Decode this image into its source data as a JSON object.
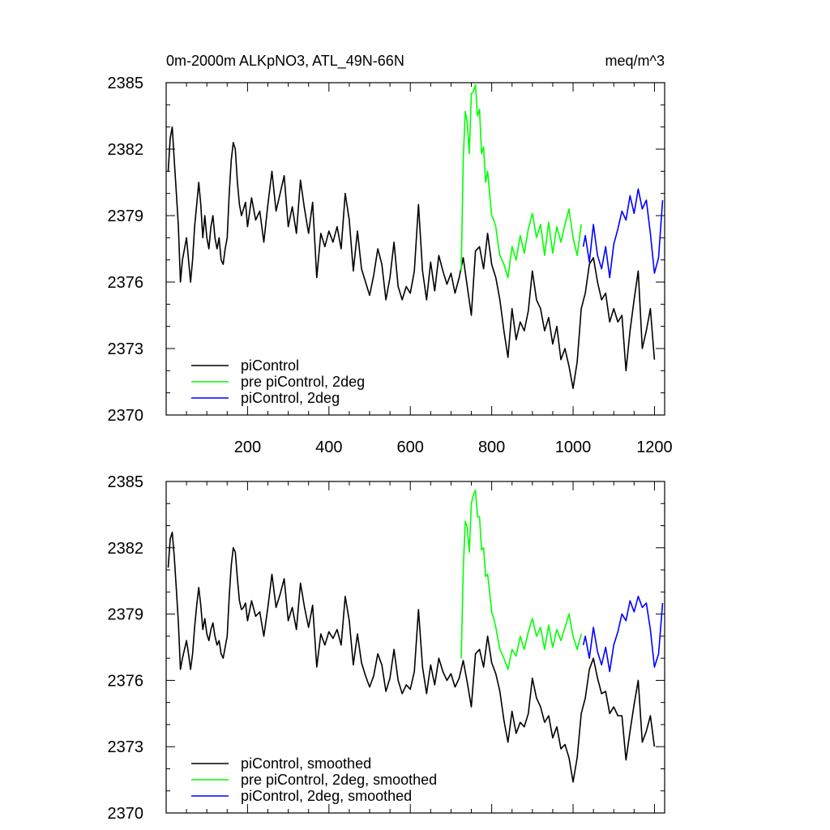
{
  "chart_data": [
    {
      "type": "line",
      "title_left": "0m-2000m ALKpNO3, ATL_49N-66N",
      "title_right": "meq/m^3",
      "xlim": [
        0,
        1225
      ],
      "ylim": [
        2370,
        2385
      ],
      "xticks": [
        200,
        400,
        600,
        800,
        1000,
        1200
      ],
      "xtick_labels": [
        "200",
        "400",
        "600",
        "800",
        "1000",
        "1200"
      ],
      "yticks": [
        2370,
        2373,
        2376,
        2379,
        2382,
        2385
      ],
      "ytick_labels": [
        "2370",
        "2373",
        "2376",
        "2379",
        "2382",
        "2385"
      ],
      "legend_position": "bottom-left",
      "series": [
        {
          "name": "piControl",
          "color": "#000000",
          "x": [
            5,
            10,
            15,
            20,
            25,
            30,
            35,
            40,
            45,
            50,
            55,
            60,
            65,
            70,
            75,
            80,
            85,
            90,
            95,
            100,
            105,
            110,
            115,
            120,
            125,
            130,
            135,
            140,
            145,
            150,
            155,
            160,
            165,
            170,
            175,
            180,
            185,
            190,
            195,
            200,
            210,
            220,
            230,
            240,
            250,
            260,
            270,
            280,
            290,
            300,
            310,
            320,
            330,
            340,
            350,
            360,
            370,
            380,
            390,
            400,
            410,
            420,
            430,
            440,
            450,
            460,
            470,
            480,
            490,
            500,
            510,
            520,
            530,
            540,
            550,
            560,
            570,
            580,
            590,
            600,
            610,
            620,
            630,
            640,
            650,
            660,
            670,
            680,
            690,
            700,
            710,
            720,
            730,
            740,
            750,
            760,
            770,
            780,
            790,
            800,
            810,
            820,
            830,
            840,
            850,
            860,
            870,
            880,
            890,
            900,
            910,
            920,
            930,
            940,
            950,
            960,
            970,
            980,
            990,
            1000,
            1010,
            1020,
            1030,
            1040,
            1050,
            1060,
            1070,
            1080,
            1090,
            1100,
            1110,
            1120,
            1130,
            1140,
            1150,
            1160,
            1170,
            1180,
            1190,
            1200
          ],
          "values": [
            2381.0,
            2382.5,
            2383.0,
            2381.5,
            2380.0,
            2378.5,
            2376.0,
            2377.0,
            2377.5,
            2378.0,
            2377.0,
            2376.0,
            2377.0,
            2378.5,
            2379.5,
            2380.5,
            2379.5,
            2378.0,
            2379.0,
            2378.0,
            2377.5,
            2378.5,
            2379.0,
            2378.0,
            2377.5,
            2378.0,
            2377.0,
            2376.8,
            2377.5,
            2378.0,
            2380.0,
            2381.5,
            2382.3,
            2382.0,
            2380.5,
            2379.5,
            2379.0,
            2379.3,
            2379.6,
            2378.5,
            2379.8,
            2378.8,
            2379.2,
            2377.8,
            2379.5,
            2381.0,
            2379.2,
            2380.0,
            2380.8,
            2378.5,
            2379.4,
            2378.2,
            2380.6,
            2379.3,
            2378.2,
            2379.6,
            2376.2,
            2378.2,
            2377.6,
            2378.3,
            2377.8,
            2378.5,
            2377.5,
            2380.0,
            2378.8,
            2376.5,
            2378.3,
            2376.6,
            2376.0,
            2375.4,
            2376.3,
            2377.5,
            2376.8,
            2375.2,
            2376.2,
            2377.8,
            2375.8,
            2375.2,
            2375.8,
            2375.5,
            2376.5,
            2379.5,
            2376.5,
            2375.2,
            2376.9,
            2375.6,
            2377.2,
            2376.5,
            2375.9,
            2376.4,
            2375.5,
            2376.2,
            2377.1,
            2375.8,
            2374.5,
            2377.4,
            2377.6,
            2376.6,
            2378.2,
            2376.8,
            2376.2,
            2375.2,
            2373.8,
            2372.6,
            2374.8,
            2373.4,
            2374.2,
            2373.8,
            2374.7,
            2376.5,
            2375.2,
            2374.8,
            2373.8,
            2374.4,
            2373.2,
            2374.0,
            2372.5,
            2373.0,
            2372.2,
            2371.2,
            2372.4,
            2374.8,
            2375.5,
            2376.8,
            2377.1,
            2376.0,
            2375.2,
            2375.5,
            2374.2,
            2374.8,
            2374.2,
            2374.5,
            2372.0,
            2373.8,
            2375.2,
            2376.5,
            2373.0,
            2373.8,
            2374.8,
            2372.5
          ],
          "legend_label": "piControl"
        },
        {
          "name": "pre piControl, 2deg",
          "color": "#00ff00",
          "x": [
            725,
            730,
            735,
            740,
            745,
            750,
            755,
            760,
            765,
            770,
            775,
            780,
            785,
            790,
            795,
            800,
            805,
            810,
            815,
            820,
            830,
            840,
            850,
            860,
            870,
            880,
            890,
            900,
            910,
            920,
            930,
            940,
            950,
            960,
            970,
            980,
            990,
            1000,
            1010,
            1020
          ],
          "values": [
            2376.5,
            2381.5,
            2383.7,
            2383.2,
            2381.8,
            2384.5,
            2384.6,
            2384.9,
            2383.5,
            2383.8,
            2381.8,
            2382.1,
            2380.5,
            2381.0,
            2380.0,
            2379.0,
            2378.8,
            2378.5,
            2377.8,
            2377.2,
            2376.8,
            2376.2,
            2377.6,
            2377.0,
            2378.1,
            2377.3,
            2378.4,
            2379.1,
            2378.0,
            2378.6,
            2377.2,
            2378.7,
            2377.3,
            2378.5,
            2377.8,
            2378.6,
            2379.3,
            2378.0,
            2377.2,
            2378.6
          ],
          "legend_label": "pre piControl, 2deg"
        },
        {
          "name": "piControl, 2deg",
          "color": "#0000ff",
          "x": [
            1025,
            1030,
            1040,
            1050,
            1060,
            1070,
            1080,
            1090,
            1100,
            1110,
            1120,
            1130,
            1140,
            1150,
            1160,
            1170,
            1180,
            1190,
            1200,
            1210,
            1220
          ],
          "values": [
            2377.6,
            2378.1,
            2376.9,
            2378.6,
            2377.2,
            2376.6,
            2377.6,
            2376.2,
            2377.7,
            2378.4,
            2379.2,
            2378.8,
            2379.9,
            2379.1,
            2380.2,
            2379.3,
            2379.7,
            2378.2,
            2376.4,
            2377.1,
            2379.7
          ],
          "legend_label": "piControl, 2deg"
        }
      ]
    },
    {
      "type": "line",
      "title_left": "",
      "title_right": "",
      "xlim": [
        0,
        1225
      ],
      "ylim": [
        2370,
        2385
      ],
      "xticks": [
        200,
        400,
        600,
        800,
        1000,
        1200
      ],
      "xtick_labels": [],
      "yticks": [
        2370,
        2373,
        2376,
        2379,
        2382,
        2385
      ],
      "ytick_labels": [
        "2370",
        "2373",
        "2376",
        "2379",
        "2382",
        "2385"
      ],
      "legend_position": "bottom-left",
      "series": [
        {
          "name": "piControl, smoothed",
          "color": "#000000",
          "x": [
            5,
            10,
            15,
            20,
            25,
            30,
            35,
            40,
            45,
            50,
            55,
            60,
            65,
            70,
            75,
            80,
            85,
            90,
            95,
            100,
            105,
            110,
            115,
            120,
            125,
            130,
            135,
            140,
            145,
            150,
            155,
            160,
            165,
            170,
            175,
            180,
            185,
            190,
            195,
            200,
            210,
            220,
            230,
            240,
            250,
            260,
            270,
            280,
            290,
            300,
            310,
            320,
            330,
            340,
            350,
            360,
            370,
            380,
            390,
            400,
            410,
            420,
            430,
            440,
            450,
            460,
            470,
            480,
            490,
            500,
            510,
            520,
            530,
            540,
            550,
            560,
            570,
            580,
            590,
            600,
            610,
            620,
            630,
            640,
            650,
            660,
            670,
            680,
            690,
            700,
            710,
            720,
            730,
            740,
            750,
            760,
            770,
            780,
            790,
            800,
            810,
            820,
            830,
            840,
            850,
            860,
            870,
            880,
            890,
            900,
            910,
            920,
            930,
            940,
            950,
            960,
            970,
            980,
            990,
            1000,
            1010,
            1020,
            1030,
            1040,
            1050,
            1060,
            1070,
            1080,
            1090,
            1100,
            1110,
            1120,
            1130,
            1140,
            1150,
            1160,
            1170,
            1180,
            1190,
            1200
          ],
          "values": [
            2381.1,
            2382.4,
            2382.7,
            2381.6,
            2380.1,
            2378.6,
            2376.5,
            2377.0,
            2377.4,
            2377.8,
            2377.2,
            2376.5,
            2377.2,
            2378.4,
            2379.4,
            2380.2,
            2379.4,
            2378.3,
            2378.8,
            2378.1,
            2377.8,
            2378.3,
            2378.6,
            2378.0,
            2377.6,
            2377.8,
            2377.2,
            2377.0,
            2377.5,
            2378.0,
            2379.8,
            2381.2,
            2382.0,
            2381.8,
            2380.6,
            2379.6,
            2379.2,
            2379.3,
            2379.5,
            2378.7,
            2379.6,
            2378.9,
            2379.1,
            2378.0,
            2379.3,
            2380.8,
            2379.3,
            2379.9,
            2380.6,
            2378.7,
            2379.3,
            2378.3,
            2380.4,
            2379.3,
            2378.4,
            2379.4,
            2376.6,
            2378.1,
            2377.6,
            2378.2,
            2377.9,
            2378.3,
            2377.6,
            2379.8,
            2378.7,
            2376.7,
            2378.1,
            2376.8,
            2376.2,
            2375.7,
            2376.2,
            2377.2,
            2376.7,
            2375.5,
            2376.1,
            2377.4,
            2376.0,
            2375.4,
            2375.8,
            2375.6,
            2376.4,
            2379.2,
            2376.6,
            2375.4,
            2376.7,
            2375.8,
            2377.0,
            2376.4,
            2376.0,
            2376.3,
            2375.7,
            2376.1,
            2376.9,
            2375.9,
            2374.8,
            2377.2,
            2377.4,
            2376.6,
            2378.0,
            2376.8,
            2376.3,
            2375.5,
            2374.2,
            2373.2,
            2374.6,
            2373.6,
            2374.1,
            2373.9,
            2374.5,
            2376.1,
            2375.2,
            2374.8,
            2374.1,
            2374.4,
            2373.4,
            2373.9,
            2372.9,
            2373.1,
            2372.5,
            2371.4,
            2372.5,
            2374.5,
            2375.2,
            2376.5,
            2377.0,
            2376.1,
            2375.4,
            2375.5,
            2374.5,
            2374.8,
            2374.4,
            2374.4,
            2372.4,
            2373.7,
            2374.9,
            2376.0,
            2373.2,
            2373.7,
            2374.4,
            2373.0
          ],
          "legend_label": "piControl, smoothed"
        },
        {
          "name": "pre piControl, 2deg, smoothed",
          "color": "#00ff00",
          "x": [
            725,
            730,
            735,
            740,
            745,
            750,
            755,
            760,
            765,
            770,
            775,
            780,
            785,
            790,
            795,
            800,
            805,
            810,
            815,
            820,
            830,
            840,
            850,
            860,
            870,
            880,
            890,
            900,
            910,
            920,
            930,
            940,
            950,
            960,
            970,
            980,
            990,
            1000,
            1010,
            1020
          ],
          "values": [
            2377.0,
            2381.0,
            2383.2,
            2382.9,
            2381.8,
            2384.0,
            2384.4,
            2384.6,
            2383.4,
            2383.4,
            2381.9,
            2382.0,
            2380.7,
            2380.8,
            2380.0,
            2379.1,
            2378.8,
            2378.4,
            2377.9,
            2377.4,
            2377.0,
            2376.5,
            2377.4,
            2377.1,
            2378.0,
            2377.4,
            2378.2,
            2378.8,
            2378.0,
            2378.4,
            2377.4,
            2378.5,
            2377.5,
            2378.3,
            2377.8,
            2378.4,
            2379.0,
            2378.0,
            2377.4,
            2378.1
          ],
          "legend_label": "pre piControl, 2deg, smoothed"
        },
        {
          "name": "piControl, 2deg, smoothed",
          "color": "#0000ff",
          "x": [
            1025,
            1030,
            1040,
            1050,
            1060,
            1070,
            1080,
            1090,
            1100,
            1110,
            1120,
            1130,
            1140,
            1150,
            1160,
            1170,
            1180,
            1190,
            1200,
            1210,
            1220
          ],
          "values": [
            2377.6,
            2378.0,
            2377.0,
            2378.4,
            2377.3,
            2376.7,
            2377.5,
            2376.4,
            2377.6,
            2378.2,
            2379.0,
            2378.7,
            2379.6,
            2379.1,
            2379.8,
            2379.3,
            2379.5,
            2378.3,
            2376.6,
            2377.2,
            2379.5
          ],
          "legend_label": "piControl, 2deg, smoothed"
        }
      ]
    }
  ]
}
